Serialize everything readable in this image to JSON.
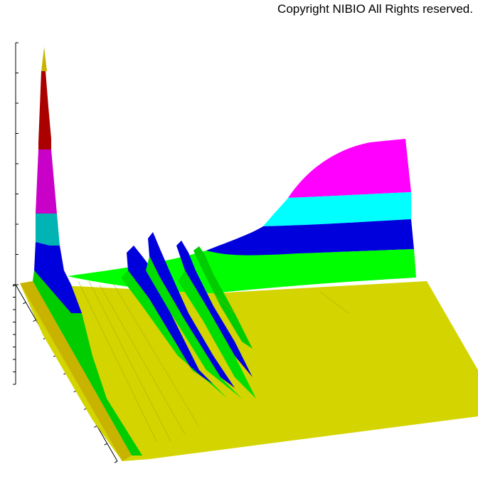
{
  "copyright": "Copyright NIBIO All Rights reserved.",
  "chart_data": {
    "type": "surface3d",
    "title": "",
    "axes": {
      "vertical": {
        "label": "",
        "ticks": 8
      },
      "depth": {
        "label": "",
        "ticks": 8
      },
      "width": {
        "label": "",
        "ticks": 10
      }
    },
    "colormap": [
      "#d4d400",
      "#00ff00",
      "#0000dd",
      "#00ffff",
      "#ff00ff",
      "#aa0000",
      "#c8b400"
    ],
    "surface": {
      "plateau_bands": [
        "#d4d400",
        "#00ff00",
        "#0000dd",
        "#00ffff",
        "#ff00ff"
      ],
      "left_peak_bands": [
        "#c8b400",
        "#d4d400",
        "#00cc00",
        "#0000dd",
        "#00b4b4",
        "#c800c8",
        "#aa0000",
        "#c8b400"
      ],
      "ridges": 4
    }
  }
}
